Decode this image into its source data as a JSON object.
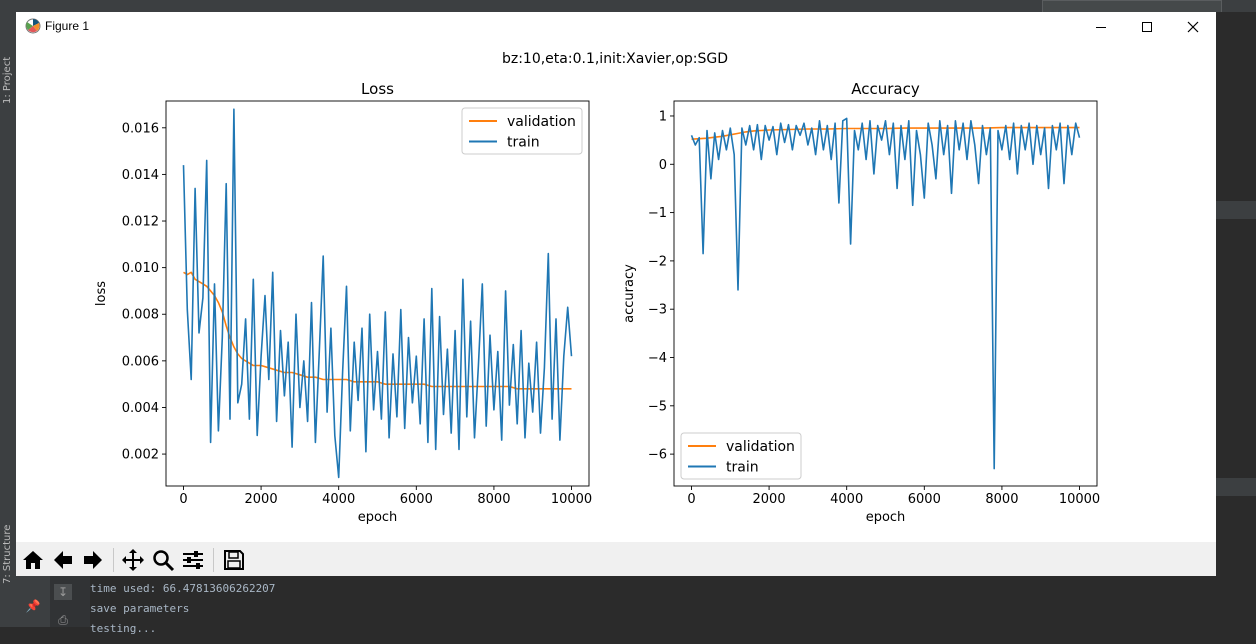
{
  "window": {
    "title": "Figure 1",
    "controls": [
      "minimize",
      "maximize",
      "close"
    ]
  },
  "figure": {
    "suptitle": "bz:10,eta:0.1,init:Xavier,op:SGD"
  },
  "ide": {
    "left_tabs": [
      "1: Project",
      "7: Structure"
    ],
    "console_lines": [
      "time used: 66.47813606262207",
      "save parameters",
      "testing..."
    ],
    "colors": {
      "ide_bg": "#2b2b2b",
      "ide_panel": "#3c3f41",
      "console_text": "#a9b7c6"
    }
  },
  "toolbar": {
    "buttons": [
      "home-icon",
      "back-icon",
      "forward-icon",
      "pan-icon",
      "zoom-icon",
      "configure-icon",
      "save-icon"
    ]
  },
  "colors": {
    "train": "#1f77b4",
    "validation": "#ff7f0e"
  },
  "chart_data": [
    {
      "type": "line",
      "title": "Loss",
      "xlabel": "epoch",
      "ylabel": "loss",
      "xlim": [
        -450,
        10450
      ],
      "ylim": [
        0.00063,
        0.01715
      ],
      "xticks": [
        0,
        2000,
        4000,
        6000,
        8000,
        10000
      ],
      "yticks": [
        0.002,
        0.004,
        0.006,
        0.008,
        0.01,
        0.012,
        0.014,
        0.016
      ],
      "ytick_labels": [
        "0.002",
        "0.004",
        "0.006",
        "0.008",
        "0.010",
        "0.012",
        "0.014",
        "0.016"
      ],
      "legend": {
        "position": "upper right",
        "entries": [
          "validation",
          "train"
        ]
      },
      "series": [
        {
          "name": "validation",
          "x": [
            0,
            100,
            200,
            300,
            400,
            500,
            600,
            700,
            800,
            900,
            1000,
            1100,
            1200,
            1300,
            1400,
            1500,
            1600,
            1700,
            1800,
            1900,
            2000,
            2200,
            2400,
            2600,
            2800,
            3000,
            3200,
            3400,
            3600,
            3800,
            4000,
            4200,
            4400,
            4600,
            4800,
            5000,
            5200,
            5400,
            5600,
            5800,
            6000,
            6200,
            6400,
            6600,
            6800,
            7000,
            7200,
            7400,
            7600,
            7800,
            8000,
            8200,
            8400,
            8600,
            8800,
            9000,
            9200,
            9400,
            9600,
            9800,
            10000
          ],
          "values": [
            0.0098,
            0.0097,
            0.0098,
            0.0095,
            0.0094,
            0.0093,
            0.0092,
            0.009,
            0.0088,
            0.0085,
            0.0081,
            0.0075,
            0.007,
            0.0066,
            0.0063,
            0.0061,
            0.006,
            0.0059,
            0.0058,
            0.0058,
            0.0058,
            0.0057,
            0.0056,
            0.0055,
            0.0055,
            0.0054,
            0.0053,
            0.0053,
            0.0052,
            0.0052,
            0.0052,
            0.0052,
            0.0051,
            0.0051,
            0.0051,
            0.0051,
            0.005,
            0.005,
            0.005,
            0.005,
            0.005,
            0.005,
            0.0049,
            0.0049,
            0.0049,
            0.0049,
            0.0049,
            0.0049,
            0.0049,
            0.0049,
            0.0049,
            0.0049,
            0.0049,
            0.0048,
            0.0048,
            0.0048,
            0.0048,
            0.0048,
            0.0048,
            0.0048,
            0.0048
          ]
        },
        {
          "name": "train",
          "x": [
            0,
            100,
            200,
            300,
            400,
            500,
            600,
            700,
            800,
            900,
            1000,
            1100,
            1200,
            1300,
            1400,
            1500,
            1600,
            1700,
            1800,
            1900,
            2000,
            2100,
            2200,
            2300,
            2400,
            2500,
            2600,
            2700,
            2800,
            2900,
            3000,
            3100,
            3200,
            3300,
            3400,
            3500,
            3600,
            3700,
            3800,
            3900,
            4000,
            4100,
            4200,
            4300,
            4400,
            4500,
            4600,
            4700,
            4800,
            4900,
            5000,
            5100,
            5200,
            5300,
            5400,
            5500,
            5600,
            5700,
            5800,
            5900,
            6000,
            6100,
            6200,
            6300,
            6400,
            6500,
            6600,
            6700,
            6800,
            6900,
            7000,
            7100,
            7200,
            7300,
            7400,
            7500,
            7600,
            7700,
            7800,
            7900,
            8000,
            8100,
            8200,
            8300,
            8400,
            8500,
            8600,
            8700,
            8800,
            8900,
            9000,
            9100,
            9200,
            9300,
            9400,
            9500,
            9600,
            9700,
            9800,
            9900,
            10000
          ],
          "values": [
            0.0144,
            0.0082,
            0.0052,
            0.0134,
            0.0072,
            0.0087,
            0.0146,
            0.0025,
            0.0093,
            0.003,
            0.007,
            0.0136,
            0.0035,
            0.0168,
            0.0042,
            0.005,
            0.0078,
            0.0035,
            0.0095,
            0.0028,
            0.0062,
            0.0088,
            0.0052,
            0.0098,
            0.0034,
            0.0073,
            0.0045,
            0.0068,
            0.0023,
            0.008,
            0.004,
            0.006,
            0.0034,
            0.0085,
            0.0025,
            0.0064,
            0.0105,
            0.0038,
            0.0074,
            0.0028,
            0.001,
            0.0055,
            0.0092,
            0.003,
            0.0068,
            0.0043,
            0.0074,
            0.0021,
            0.008,
            0.0039,
            0.0064,
            0.0035,
            0.0081,
            0.0027,
            0.0063,
            0.0036,
            0.0082,
            0.0031,
            0.007,
            0.0042,
            0.0062,
            0.0033,
            0.0078,
            0.0025,
            0.0091,
            0.0022,
            0.0079,
            0.0037,
            0.0065,
            0.0029,
            0.0073,
            0.0022,
            0.0095,
            0.0036,
            0.0077,
            0.0027,
            0.0058,
            0.0093,
            0.0032,
            0.0071,
            0.0039,
            0.0064,
            0.0026,
            0.009,
            0.0041,
            0.0067,
            0.0033,
            0.0073,
            0.0027,
            0.0059,
            0.0038,
            0.0068,
            0.0029,
            0.0057,
            0.0106,
            0.0035,
            0.0078,
            0.0026,
            0.0062,
            0.0083,
            0.0062
          ]
        }
      ]
    },
    {
      "type": "line",
      "title": "Accuracy",
      "xlabel": "epoch",
      "ylabel": "accuracy",
      "xlim": [
        -450,
        10450
      ],
      "ylim": [
        -6.66,
        1.31
      ],
      "xticks": [
        0,
        2000,
        4000,
        6000,
        8000,
        10000
      ],
      "yticks": [
        -6,
        -5,
        -4,
        -3,
        -2,
        -1,
        0,
        1
      ],
      "ytick_labels": [
        "−6",
        "−5",
        "−4",
        "−3",
        "−2",
        "−1",
        "0",
        "1"
      ],
      "legend": {
        "position": "lower left",
        "entries": [
          "validation",
          "train"
        ]
      },
      "series": [
        {
          "name": "validation",
          "x": [
            0,
            200,
            400,
            600,
            800,
            1000,
            1200,
            1400,
            1600,
            1800,
            2000,
            2500,
            3000,
            3500,
            4000,
            4500,
            5000,
            5500,
            6000,
            6500,
            7000,
            7500,
            8000,
            8500,
            9000,
            9500,
            10000
          ],
          "values": [
            0.52,
            0.53,
            0.54,
            0.56,
            0.58,
            0.61,
            0.64,
            0.67,
            0.69,
            0.7,
            0.71,
            0.72,
            0.73,
            0.73,
            0.74,
            0.74,
            0.74,
            0.75,
            0.75,
            0.75,
            0.75,
            0.75,
            0.76,
            0.76,
            0.76,
            0.76,
            0.76
          ]
        },
        {
          "name": "train",
          "x": [
            0,
            100,
            200,
            300,
            400,
            500,
            600,
            700,
            800,
            900,
            1000,
            1100,
            1200,
            1300,
            1400,
            1500,
            1600,
            1700,
            1800,
            1900,
            2000,
            2100,
            2200,
            2300,
            2400,
            2500,
            2600,
            2700,
            2800,
            2900,
            3000,
            3100,
            3200,
            3300,
            3400,
            3500,
            3600,
            3700,
            3800,
            3900,
            4000,
            4100,
            4200,
            4300,
            4400,
            4500,
            4600,
            4700,
            4800,
            4900,
            5000,
            5100,
            5200,
            5300,
            5400,
            5500,
            5600,
            5700,
            5800,
            5900,
            6000,
            6100,
            6200,
            6300,
            6400,
            6500,
            6600,
            6700,
            6800,
            6900,
            7000,
            7100,
            7200,
            7300,
            7400,
            7500,
            7600,
            7700,
            7800,
            7900,
            8000,
            8100,
            8200,
            8300,
            8400,
            8500,
            8600,
            8700,
            8800,
            8900,
            9000,
            9100,
            9200,
            9300,
            9400,
            9500,
            9600,
            9700,
            9800,
            9900,
            10000
          ],
          "values": [
            0.6,
            0.4,
            0.55,
            -1.85,
            0.7,
            -0.3,
            0.65,
            0.1,
            0.7,
            0.3,
            0.75,
            0.2,
            -2.6,
            0.75,
            0.4,
            0.8,
            0.3,
            0.82,
            0.1,
            0.8,
            0.5,
            0.78,
            0.2,
            0.85,
            0.45,
            0.82,
            0.3,
            0.8,
            0.6,
            0.85,
            0.4,
            0.75,
            0.2,
            0.9,
            0.3,
            0.8,
            0.1,
            0.85,
            -0.8,
            0.9,
            0.95,
            -1.65,
            0.7,
            0.3,
            0.85,
            0.1,
            0.9,
            -0.2,
            0.8,
            0.5,
            0.9,
            0.2,
            0.85,
            -0.5,
            0.8,
            0.1,
            0.9,
            -0.85,
            0.7,
            0.2,
            -0.7,
            0.85,
            0.4,
            -0.3,
            0.9,
            0.2,
            0.8,
            -0.6,
            0.9,
            0.3,
            0.85,
            0.1,
            0.9,
            0.4,
            -0.4,
            0.8,
            0.2,
            0.75,
            -6.3,
            0.7,
            0.3,
            0.8,
            0.1,
            0.85,
            -0.2,
            0.8,
            0.3,
            0.85,
            0.0,
            0.8,
            0.2,
            0.75,
            -0.5,
            0.8,
            0.3,
            0.85,
            -0.4,
            0.8,
            0.2,
            0.85,
            0.55
          ]
        }
      ]
    }
  ]
}
